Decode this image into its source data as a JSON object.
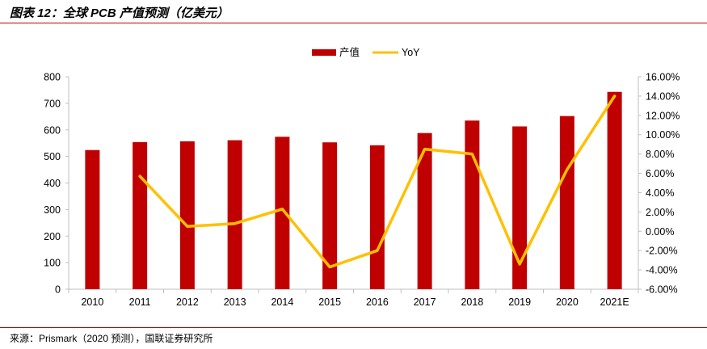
{
  "figure": {
    "title": "图表 12：全球 PCB 产值预测（亿美元）",
    "source": "来源：Prismark（2020 预测），国联证券研究所"
  },
  "colors": {
    "bar": "#c00000",
    "line": "#ffc000",
    "rule": "#c00000",
    "axis": "#bfbfbf"
  },
  "chart_data": {
    "type": "bar",
    "title": "全球 PCB 产值预测（亿美元）",
    "categories": [
      "2010",
      "2011",
      "2012",
      "2013",
      "2014",
      "2015",
      "2016",
      "2017",
      "2018",
      "2019",
      "2020",
      "2021E"
    ],
    "series": [
      {
        "name": "产值",
        "type": "bar",
        "axis": "left",
        "values": [
          524,
          554,
          557,
          561,
          574,
          553,
          542,
          588,
          635,
          613,
          652,
          743
        ]
      },
      {
        "name": "YoY",
        "type": "line",
        "axis": "right",
        "values": [
          null,
          5.7,
          0.5,
          0.8,
          2.3,
          -3.7,
          -2.0,
          8.5,
          8.0,
          -3.4,
          6.4,
          14.0
        ]
      }
    ],
    "y_left": {
      "min": 0,
      "max": 800,
      "step": 100,
      "ticks": [
        "0",
        "100",
        "200",
        "300",
        "400",
        "500",
        "600",
        "700",
        "800"
      ]
    },
    "y_right": {
      "min": -6,
      "max": 16,
      "step": 2,
      "ticks": [
        "-6.00%",
        "-4.00%",
        "-2.00%",
        "0.00%",
        "2.00%",
        "4.00%",
        "6.00%",
        "8.00%",
        "10.00%",
        "12.00%",
        "14.00%",
        "16.00%"
      ]
    },
    "legend": {
      "position": "top-center",
      "entries": [
        "产值",
        "YoY"
      ]
    },
    "grid": false
  }
}
